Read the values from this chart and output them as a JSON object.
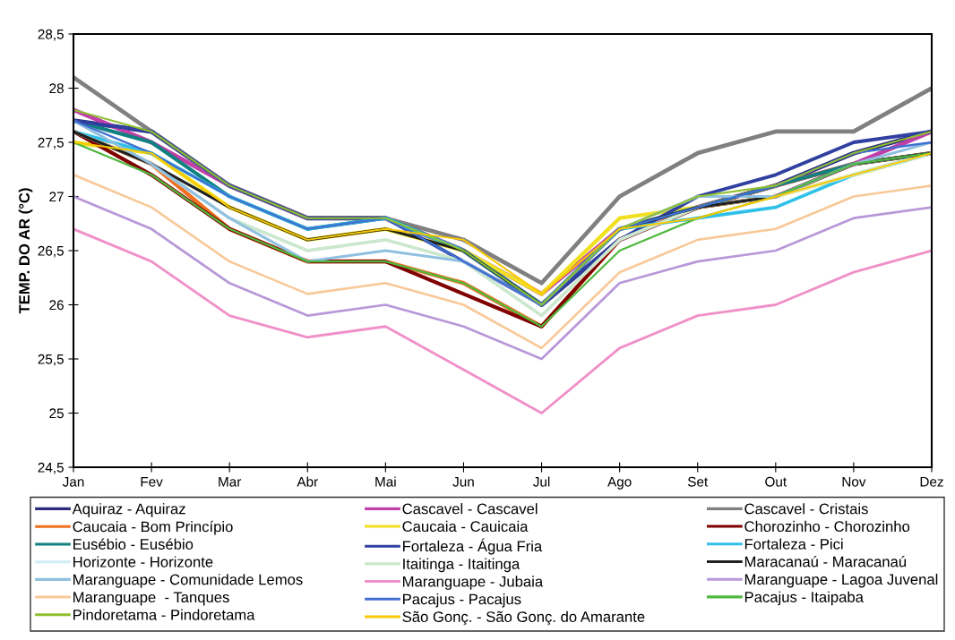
{
  "chart_data": {
    "type": "line",
    "ylabel": "TEMP. DO AR (°C)",
    "categories": [
      "Jan",
      "Fev",
      "Mar",
      "Abr",
      "Mai",
      "Jun",
      "Jul",
      "Ago",
      "Set",
      "Out",
      "Nov",
      "Dez"
    ],
    "ylim": [
      24.5,
      28.5
    ],
    "yticks": [
      {
        "value": 24.5,
        "label": "24,5"
      },
      25,
      {
        "value": 25.5,
        "label": "25,5"
      },
      26,
      {
        "value": 26.5,
        "label": "26,5"
      },
      27,
      {
        "value": 27.5,
        "label": "27,5"
      },
      28,
      {
        "value": 28.5,
        "label": "28,5"
      }
    ],
    "grid": false,
    "legend": "bottom",
    "marker": "none",
    "line_style": "solid",
    "series": [
      {
        "name": "Aquiraz - Aquiraz",
        "color": "#2b2a7a",
        "values": [
          27.7,
          27.6,
          27.1,
          26.8,
          26.8,
          26.5,
          26.0,
          26.6,
          26.9,
          27.1,
          27.4,
          27.6
        ]
      },
      {
        "name": "Cascavel - Cascavel",
        "color": "#c040a8",
        "values": [
          27.8,
          27.5,
          27.1,
          26.8,
          26.8,
          26.5,
          26.1,
          26.7,
          26.9,
          27.1,
          27.3,
          27.6
        ]
      },
      {
        "name": "Cascavel - Cristais",
        "color": "#808080",
        "values": [
          28.1,
          27.6,
          27.1,
          26.8,
          26.8,
          26.6,
          26.2,
          27.0,
          27.4,
          27.6,
          27.6,
          28.0
        ]
      },
      {
        "name": "Caucaia - Bom Princípio",
        "color": "#f07020",
        "values": [
          27.6,
          27.3,
          26.7,
          26.4,
          26.4,
          26.2,
          25.8,
          26.6,
          26.9,
          27.1,
          27.3,
          27.4
        ]
      },
      {
        "name": "Caucaia - Cauicaia",
        "color": "#f0e020",
        "values": [
          27.5,
          27.4,
          26.9,
          26.6,
          26.7,
          26.5,
          26.1,
          26.8,
          26.9,
          27.0,
          27.2,
          27.4
        ]
      },
      {
        "name": "Chorozinho - Chorozinho",
        "color": "#800000",
        "values": [
          27.6,
          27.2,
          26.7,
          26.4,
          26.4,
          26.1,
          25.8,
          26.6,
          26.9,
          27.0,
          27.3,
          27.4
        ]
      },
      {
        "name": "Eusébio - Eusébio",
        "color": "#108080",
        "values": [
          27.7,
          27.5,
          27.0,
          26.7,
          26.8,
          26.5,
          26.0,
          26.7,
          26.9,
          27.1,
          27.3,
          27.4
        ]
      },
      {
        "name": "Fortaleza - Água Fria",
        "color": "#3040a0",
        "values": [
          27.7,
          27.6,
          27.1,
          26.8,
          26.8,
          26.4,
          26.0,
          26.6,
          27.0,
          27.2,
          27.5,
          27.6
        ]
      },
      {
        "name": "Fortaleza - Pici",
        "color": "#30c0e8",
        "values": [
          27.6,
          27.4,
          27.0,
          26.7,
          26.8,
          26.5,
          26.0,
          26.7,
          26.8,
          26.9,
          27.2,
          27.4
        ]
      },
      {
        "name": "Horizonte - Horizonte",
        "color": "#d0ecf4",
        "values": [
          27.6,
          27.3,
          26.8,
          26.5,
          26.6,
          26.4,
          25.9,
          26.6,
          26.9,
          27.0,
          27.2,
          27.4
        ]
      },
      {
        "name": "Itaitinga - Itaitinga",
        "color": "#cce8cc",
        "values": [
          27.6,
          27.3,
          26.8,
          26.5,
          26.6,
          26.4,
          25.9,
          26.6,
          26.9,
          27.0,
          27.3,
          27.4
        ]
      },
      {
        "name": "Maracanaú - Maracanaú",
        "color": "#202020",
        "values": [
          27.6,
          27.3,
          26.9,
          26.6,
          26.7,
          26.5,
          26.0,
          26.7,
          26.9,
          27.0,
          27.3,
          27.4
        ]
      },
      {
        "name": "Maranguape - Comunidade Lemos",
        "color": "#90c0e0",
        "values": [
          27.7,
          27.3,
          26.8,
          26.4,
          26.5,
          26.4,
          26.0,
          26.7,
          27.0,
          27.0,
          27.3,
          27.5
        ]
      },
      {
        "name": "Maranguape - Jubaia",
        "color": "#f090c8",
        "values": [
          26.7,
          26.4,
          25.9,
          25.7,
          25.8,
          25.4,
          25.0,
          25.6,
          25.9,
          26.0,
          26.3,
          26.5
        ]
      },
      {
        "name": "Maranguape - Lagoa Juvenal",
        "color": "#b898d8",
        "values": [
          27.0,
          26.7,
          26.2,
          25.9,
          26.0,
          25.8,
          25.5,
          26.2,
          26.4,
          26.5,
          26.8,
          26.9
        ]
      },
      {
        "name": "Maranguape  - Tanques",
        "color": "#f8c898",
        "values": [
          27.2,
          26.9,
          26.4,
          26.1,
          26.2,
          26.0,
          25.6,
          26.3,
          26.6,
          26.7,
          27.0,
          27.1
        ]
      },
      {
        "name": "Pacajus - Pacajus",
        "color": "#4070d0",
        "values": [
          27.7,
          27.4,
          27.0,
          26.7,
          26.8,
          26.4,
          26.0,
          26.7,
          26.9,
          27.1,
          27.4,
          27.5
        ]
      },
      {
        "name": "Pacajus - Itaipaba",
        "color": "#50b840",
        "values": [
          27.5,
          27.2,
          26.7,
          26.4,
          26.4,
          26.2,
          25.8,
          26.5,
          26.8,
          27.0,
          27.3,
          27.4
        ]
      },
      {
        "name": "Pindoretama - Pindoretama",
        "color": "#90c030",
        "values": [
          27.8,
          27.6,
          27.1,
          26.8,
          26.8,
          26.5,
          26.0,
          26.7,
          27.0,
          27.1,
          27.4,
          27.6
        ]
      },
      {
        "name": "São Gonç. - São Gonç. do Amarante",
        "color": "#f8c800",
        "values": [
          27.5,
          27.4,
          26.9,
          26.6,
          26.7,
          26.6,
          26.1,
          26.7,
          26.8,
          27.0,
          27.2,
          27.4
        ]
      }
    ]
  }
}
